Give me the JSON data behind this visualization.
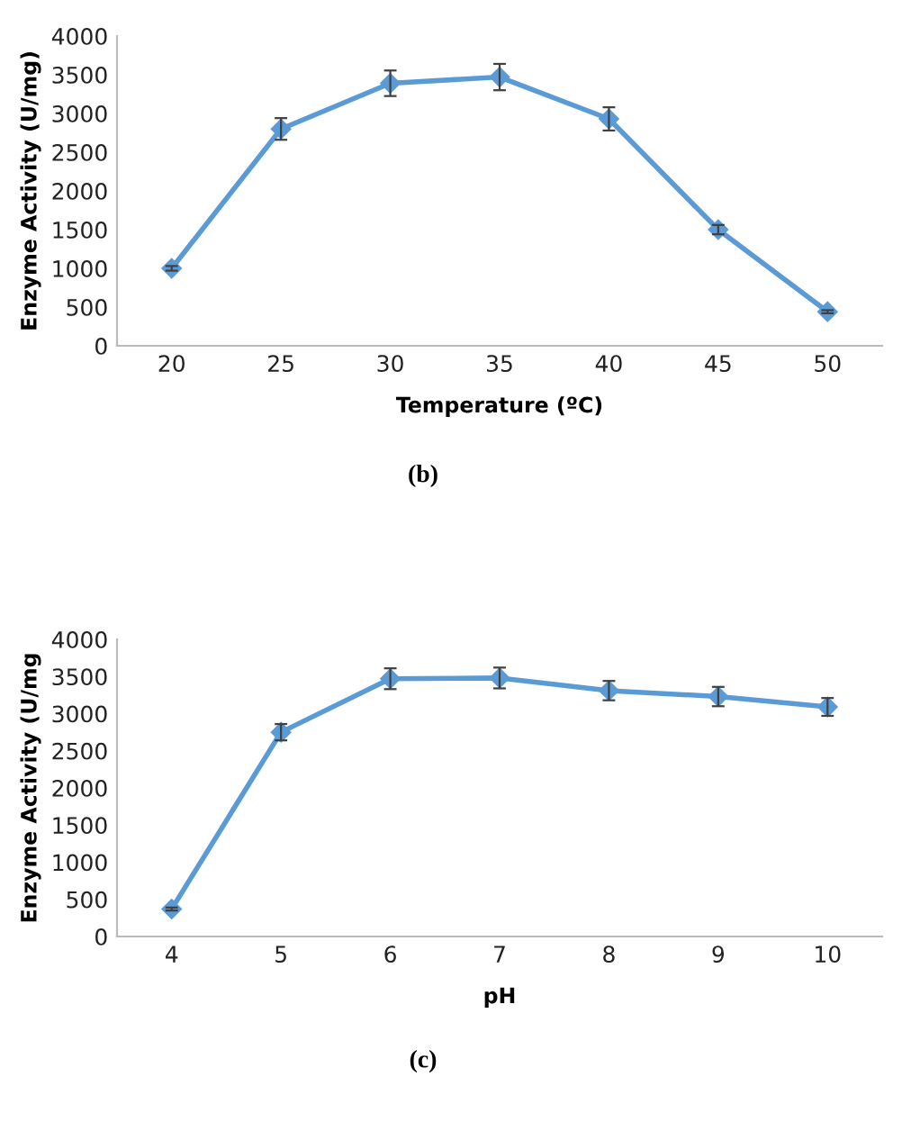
{
  "chart_data": [
    {
      "type": "line",
      "categories": [
        "20",
        "25",
        "30",
        "35",
        "40",
        "45",
        "50"
      ],
      "xlabel": "Temperature (ºC)",
      "ylabel": "Enzyme Activity (U/mg)",
      "ylim": [
        0,
        4000
      ],
      "yticks": [
        0,
        500,
        1000,
        1500,
        2000,
        2500,
        3000,
        3500,
        4000
      ],
      "grid": false,
      "marker": "diamond",
      "line_style": "solid",
      "annotations": [
        "(b)"
      ],
      "series": [
        {
          "color": "#5b9bd5",
          "values": [
            1000,
            2800,
            3390,
            3470,
            2930,
            1500,
            440
          ],
          "errors": [
            30,
            140,
            165,
            170,
            150,
            60,
            20
          ]
        }
      ]
    },
    {
      "type": "line",
      "categories": [
        "4",
        "5",
        "6",
        "7",
        "8",
        "9",
        "10"
      ],
      "xlabel": "pH",
      "ylabel": "Enzyme Activity (U/mg",
      "ylim": [
        0,
        4000
      ],
      "yticks": [
        0,
        500,
        1000,
        1500,
        2000,
        2500,
        3000,
        3500,
        4000
      ],
      "grid": false,
      "marker": "diamond",
      "line_style": "solid",
      "annotations": [
        "(c)"
      ],
      "series": [
        {
          "color": "#5b9bd5",
          "values": [
            370,
            2750,
            3470,
            3480,
            3310,
            3230,
            3090
          ],
          "errors": [
            20,
            110,
            140,
            140,
            130,
            130,
            120
          ]
        }
      ]
    }
  ]
}
